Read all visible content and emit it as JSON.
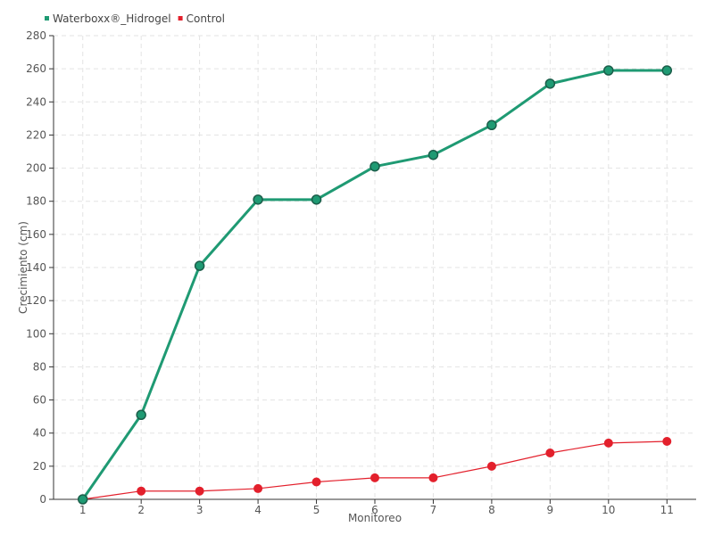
{
  "chart_data": {
    "type": "line",
    "title": "",
    "xlabel": "Monitoreo",
    "ylabel": "Crecimiento (cm)",
    "x": [
      1,
      2,
      3,
      4,
      5,
      6,
      7,
      8,
      9,
      10,
      11
    ],
    "ylim": [
      0,
      280
    ],
    "ytick_step": 20,
    "grid": true,
    "legend_position": "top-left",
    "series": [
      {
        "name": "Waterboxx®_Hidrogel",
        "color": "#1f9a73",
        "values": [
          0,
          51,
          141,
          181,
          181,
          201,
          208,
          226,
          251,
          259,
          259
        ]
      },
      {
        "name": "Control",
        "color": "#e3202c",
        "values": [
          0,
          5,
          5,
          6.5,
          10.5,
          13,
          13,
          20,
          28,
          34,
          35
        ]
      }
    ]
  }
}
